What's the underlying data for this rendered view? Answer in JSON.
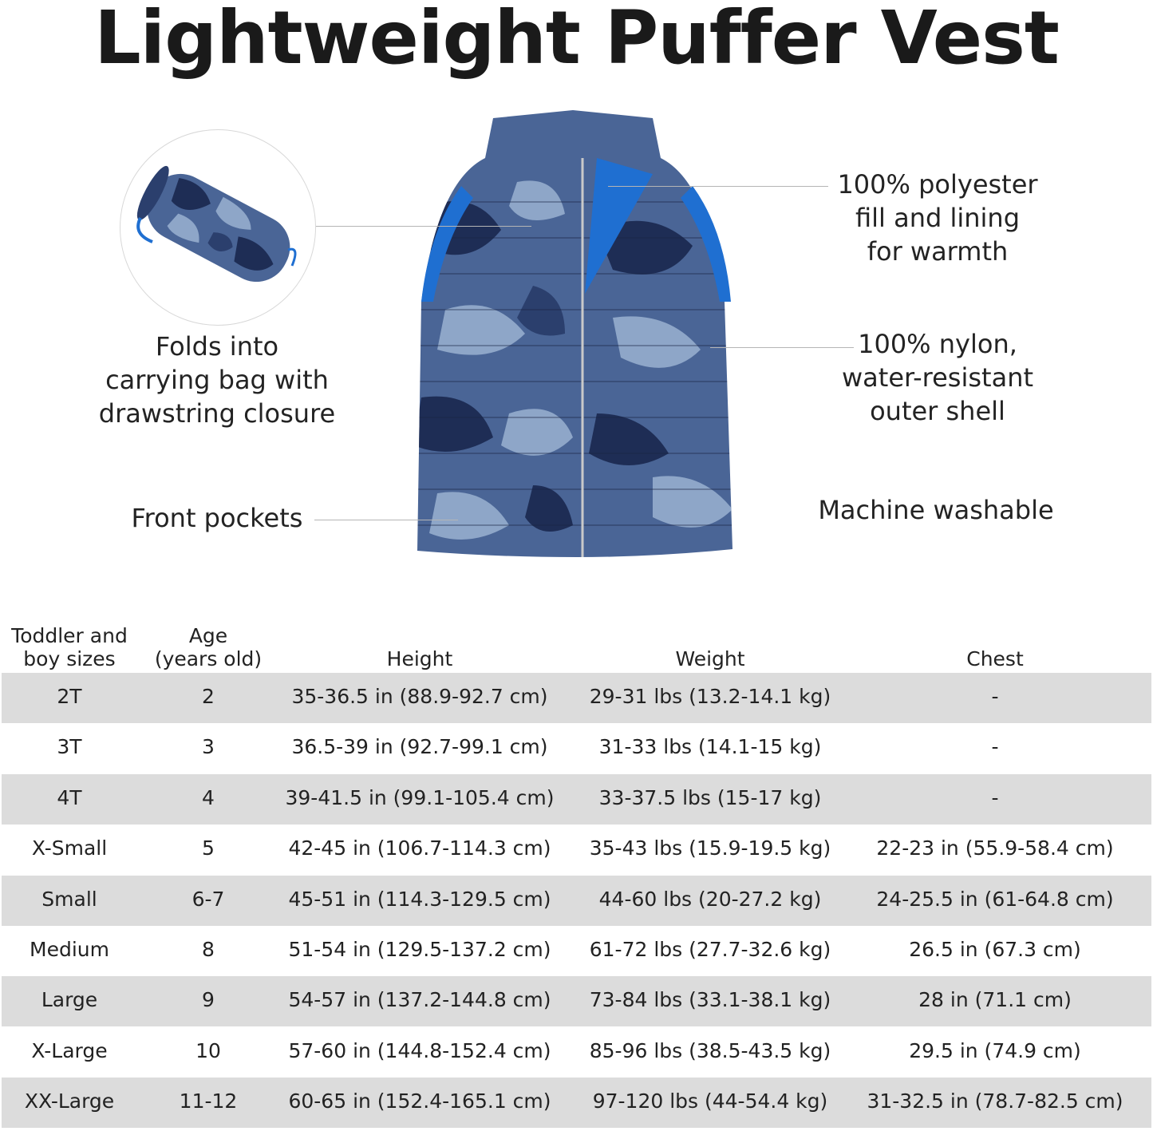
{
  "title": "Lightweight Puffer Vest",
  "callouts": {
    "folds": [
      "Folds into",
      "carrying bag with",
      "drawstring closure"
    ],
    "pockets": "Front pockets",
    "fill": [
      "100% polyester",
      "fill and lining",
      "for warmth"
    ],
    "shell": [
      "100% nylon,",
      "water-resistant",
      "outer shell"
    ],
    "washable": "Machine washable"
  },
  "colors": {
    "accent_blue": "#1f6fd1",
    "camo_dark": "#1e2d55",
    "camo_mid": "#4a6596",
    "camo_light": "#8ea6c8",
    "row_shade": "#dcdcdc"
  },
  "size_table": {
    "headers": [
      [
        "Toddler and",
        "boy sizes"
      ],
      [
        "Age",
        "(years old)"
      ],
      [
        "Height"
      ],
      [
        "Weight"
      ],
      [
        "Chest"
      ]
    ],
    "rows": [
      [
        "2T",
        "2",
        "35-36.5 in (88.9-92.7 cm)",
        "29-31 lbs (13.2-14.1 kg)",
        "-"
      ],
      [
        "3T",
        "3",
        "36.5-39 in (92.7-99.1 cm)",
        "31-33 lbs (14.1-15 kg)",
        "-"
      ],
      [
        "4T",
        "4",
        "39-41.5 in (99.1-105.4 cm)",
        "33-37.5 lbs (15-17 kg)",
        "-"
      ],
      [
        "X-Small",
        "5",
        "42-45 in (106.7-114.3 cm)",
        "35-43 lbs (15.9-19.5 kg)",
        "22-23 in (55.9-58.4 cm)"
      ],
      [
        "Small",
        "6-7",
        "45-51 in (114.3-129.5 cm)",
        "44-60 lbs (20-27.2 kg)",
        "24-25.5 in (61-64.8 cm)"
      ],
      [
        "Medium",
        "8",
        "51-54 in (129.5-137.2 cm)",
        "61-72 lbs (27.7-32.6 kg)",
        "26.5 in (67.3 cm)"
      ],
      [
        "Large",
        "9",
        "54-57 in (137.2-144.8 cm)",
        "73-84 lbs (33.1-38.1 kg)",
        "28 in (71.1 cm)"
      ],
      [
        "X-Large",
        "10",
        "57-60 in (144.8-152.4 cm)",
        "85-96 lbs (38.5-43.5 kg)",
        "29.5 in (74.9 cm)"
      ],
      [
        "XX-Large",
        "11-12",
        "60-65 in (152.4-165.1 cm)",
        "97-120 lbs (44-54.4 kg)",
        "31-32.5 in (78.7-82.5 cm)"
      ]
    ]
  }
}
